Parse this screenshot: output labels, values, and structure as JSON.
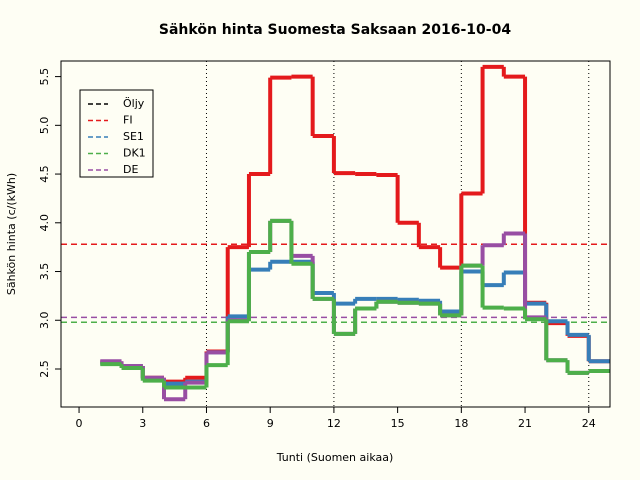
{
  "chart_data": {
    "type": "step",
    "title": "Sähkön hinta Suomesta Saksaan 2016-10-04",
    "x_label": "Tunti (Suomen aikaa)",
    "y_label": "Sähkön hinta (c/(kWh)",
    "x": [
      1,
      2,
      3,
      4,
      5,
      6,
      7,
      8,
      9,
      10,
      11,
      12,
      13,
      14,
      15,
      16,
      17,
      18,
      19,
      20,
      21,
      22,
      23,
      24,
      25
    ],
    "series": [
      {
        "name": "Öljy",
        "color": "#000000",
        "values": [
          null,
          null,
          null,
          null,
          null,
          null,
          null,
          null,
          null,
          null,
          null,
          null,
          null,
          null,
          null,
          null,
          null,
          null,
          null,
          null,
          null,
          null,
          null,
          null,
          null
        ],
        "ref": null
      },
      {
        "name": "FI",
        "color": "#e41a1c",
        "values": [
          2.57,
          2.53,
          2.41,
          2.37,
          2.41,
          2.68,
          3.75,
          4.5,
          5.49,
          5.5,
          4.89,
          4.51,
          4.5,
          4.49,
          4.0,
          3.75,
          3.54,
          4.3,
          5.6,
          5.5,
          3.18,
          2.97,
          2.84,
          2.58,
          2.58
        ],
        "ref": 3.78
      },
      {
        "name": "SE1",
        "color": "#377eb8",
        "values": [
          2.56,
          2.53,
          2.4,
          2.35,
          2.37,
          2.67,
          3.04,
          3.52,
          3.6,
          3.6,
          3.28,
          3.17,
          3.22,
          3.22,
          3.21,
          3.2,
          3.09,
          3.5,
          3.36,
          3.49,
          3.17,
          2.99,
          2.85,
          2.58,
          2.58
        ],
        "ref": null
      },
      {
        "name": "DE",
        "color": "#984ea3",
        "values": [
          2.58,
          2.53,
          2.41,
          2.19,
          2.36,
          2.67,
          3.0,
          3.7,
          4.02,
          3.66,
          3.22,
          2.86,
          3.12,
          3.19,
          3.18,
          3.17,
          3.05,
          3.56,
          3.77,
          3.89,
          3.03,
          2.59,
          2.46,
          2.48,
          2.48
        ],
        "ref": 3.03
      },
      {
        "name": "DK1",
        "color": "#4daf4a",
        "values": [
          2.55,
          2.51,
          2.38,
          2.31,
          2.31,
          2.54,
          2.99,
          3.7,
          4.02,
          3.58,
          3.22,
          2.86,
          3.12,
          3.19,
          3.18,
          3.17,
          3.05,
          3.56,
          3.13,
          3.12,
          3.01,
          2.59,
          2.46,
          2.48,
          2.48
        ],
        "ref": 2.98
      }
    ],
    "legend_order": [
      0,
      1,
      2,
      4,
      3
    ],
    "vlines": [
      6,
      12,
      18,
      24
    ],
    "xlim": [
      -0.85,
      25
    ],
    "ylim": [
      2.11,
      5.66
    ],
    "xticks": [
      0,
      3,
      6,
      9,
      12,
      15,
      18,
      21,
      24
    ],
    "yticks": [
      2.5,
      {
        "value": 3,
        "label": "3.0"
      },
      3.5,
      {
        "value": 4,
        "label": "4.0"
      },
      4.5,
      {
        "value": 5,
        "label": "5.0"
      },
      5.5
    ],
    "legend": "topleft"
  }
}
